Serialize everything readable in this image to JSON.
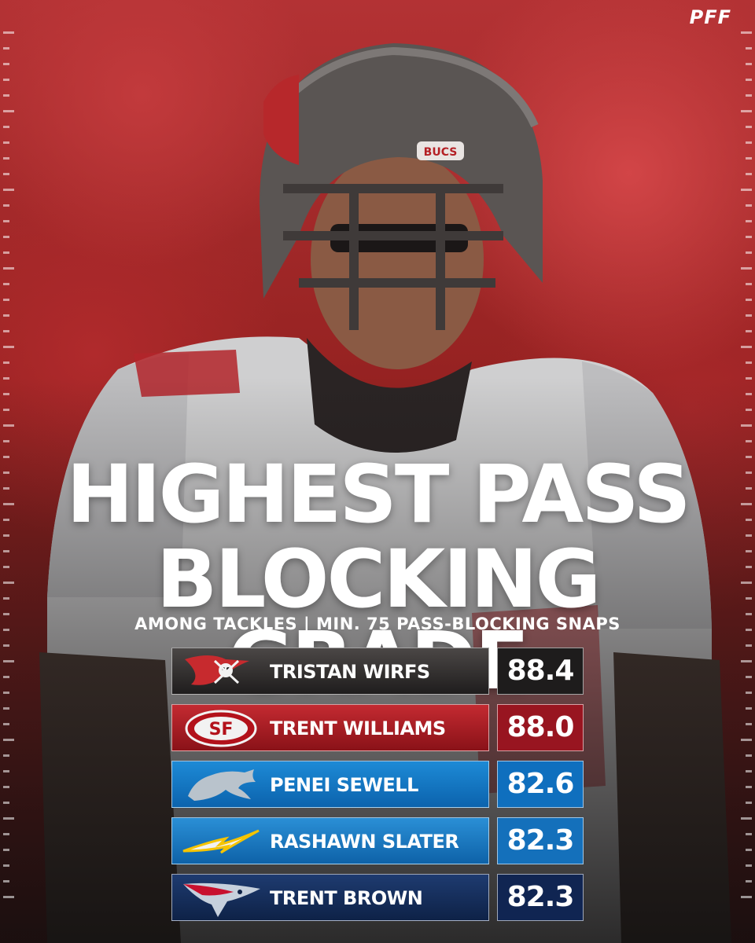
{
  "brand": {
    "logo_text": "PFF"
  },
  "headline": {
    "line1": "HIGHEST PASS",
    "line2": "BLOCKING GRADE"
  },
  "subtitle": "AMONG TACKLES | MIN. 75 PASS-BLOCKING SNAPS",
  "rows": [
    {
      "name": "TRISTAN WIRFS",
      "grade": "88.4",
      "team_icon": "buccaneers-logo-icon",
      "color_top": "#4b4746",
      "color_bottom": "#1f1d1d",
      "grade_bg": "#1e1c1c"
    },
    {
      "name": "TRENT WILLIAMS",
      "grade": "88.0",
      "team_icon": "49ers-logo-icon",
      "color_top": "#c42a31",
      "color_bottom": "#8a1218",
      "grade_bg": "#981520"
    },
    {
      "name": "PENEI SEWELL",
      "grade": "82.6",
      "team_icon": "lions-logo-icon",
      "color_top": "#1d8ad6",
      "color_bottom": "#0c63ad",
      "grade_bg": "#0f6fbe"
    },
    {
      "name": "RASHAWN SLATER",
      "grade": "82.3",
      "team_icon": "chargers-logo-icon",
      "color_top": "#2a8fd6",
      "color_bottom": "#0e62a8",
      "grade_bg": "#1470bb"
    },
    {
      "name": "TRENT BROWN",
      "grade": "82.3",
      "team_icon": "patriots-logo-icon",
      "color_top": "#1e3b70",
      "color_bottom": "#0e2247",
      "grade_bg": "#102552"
    }
  ]
}
